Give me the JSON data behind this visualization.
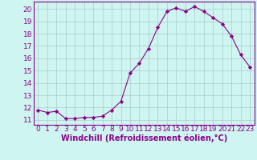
{
  "x": [
    0,
    1,
    2,
    3,
    4,
    5,
    6,
    7,
    8,
    9,
    10,
    11,
    12,
    13,
    14,
    15,
    16,
    17,
    18,
    19,
    20,
    21,
    22,
    23
  ],
  "y": [
    11.8,
    11.6,
    11.7,
    11.1,
    11.1,
    11.2,
    11.2,
    11.3,
    11.8,
    12.5,
    14.8,
    15.6,
    16.8,
    18.5,
    19.8,
    20.1,
    19.8,
    20.2,
    19.8,
    19.3,
    18.8,
    17.8,
    16.3,
    15.3
  ],
  "line_color": "#8B008B",
  "marker": "D",
  "marker_size": 2.2,
  "background_color": "#cef5f0",
  "grid_color": "#aacccc",
  "xlabel": "Windchill (Refroidissement éolien,°C)",
  "xlabel_color": "#8B008B",
  "xlabel_fontsize": 7,
  "ylabel_ticks": [
    11,
    12,
    13,
    14,
    15,
    16,
    17,
    18,
    19,
    20
  ],
  "xtick_labels": [
    "0",
    "1",
    "2",
    "3",
    "4",
    "5",
    "6",
    "7",
    "8",
    "9",
    "10",
    "11",
    "12",
    "13",
    "14",
    "15",
    "16",
    "17",
    "18",
    "19",
    "20",
    "21",
    "22",
    "23"
  ],
  "ylim": [
    10.6,
    20.6
  ],
  "xlim": [
    -0.5,
    23.5
  ],
  "tick_fontsize": 6.5,
  "tick_color": "#8B008B",
  "spine_color": "#8B008B"
}
